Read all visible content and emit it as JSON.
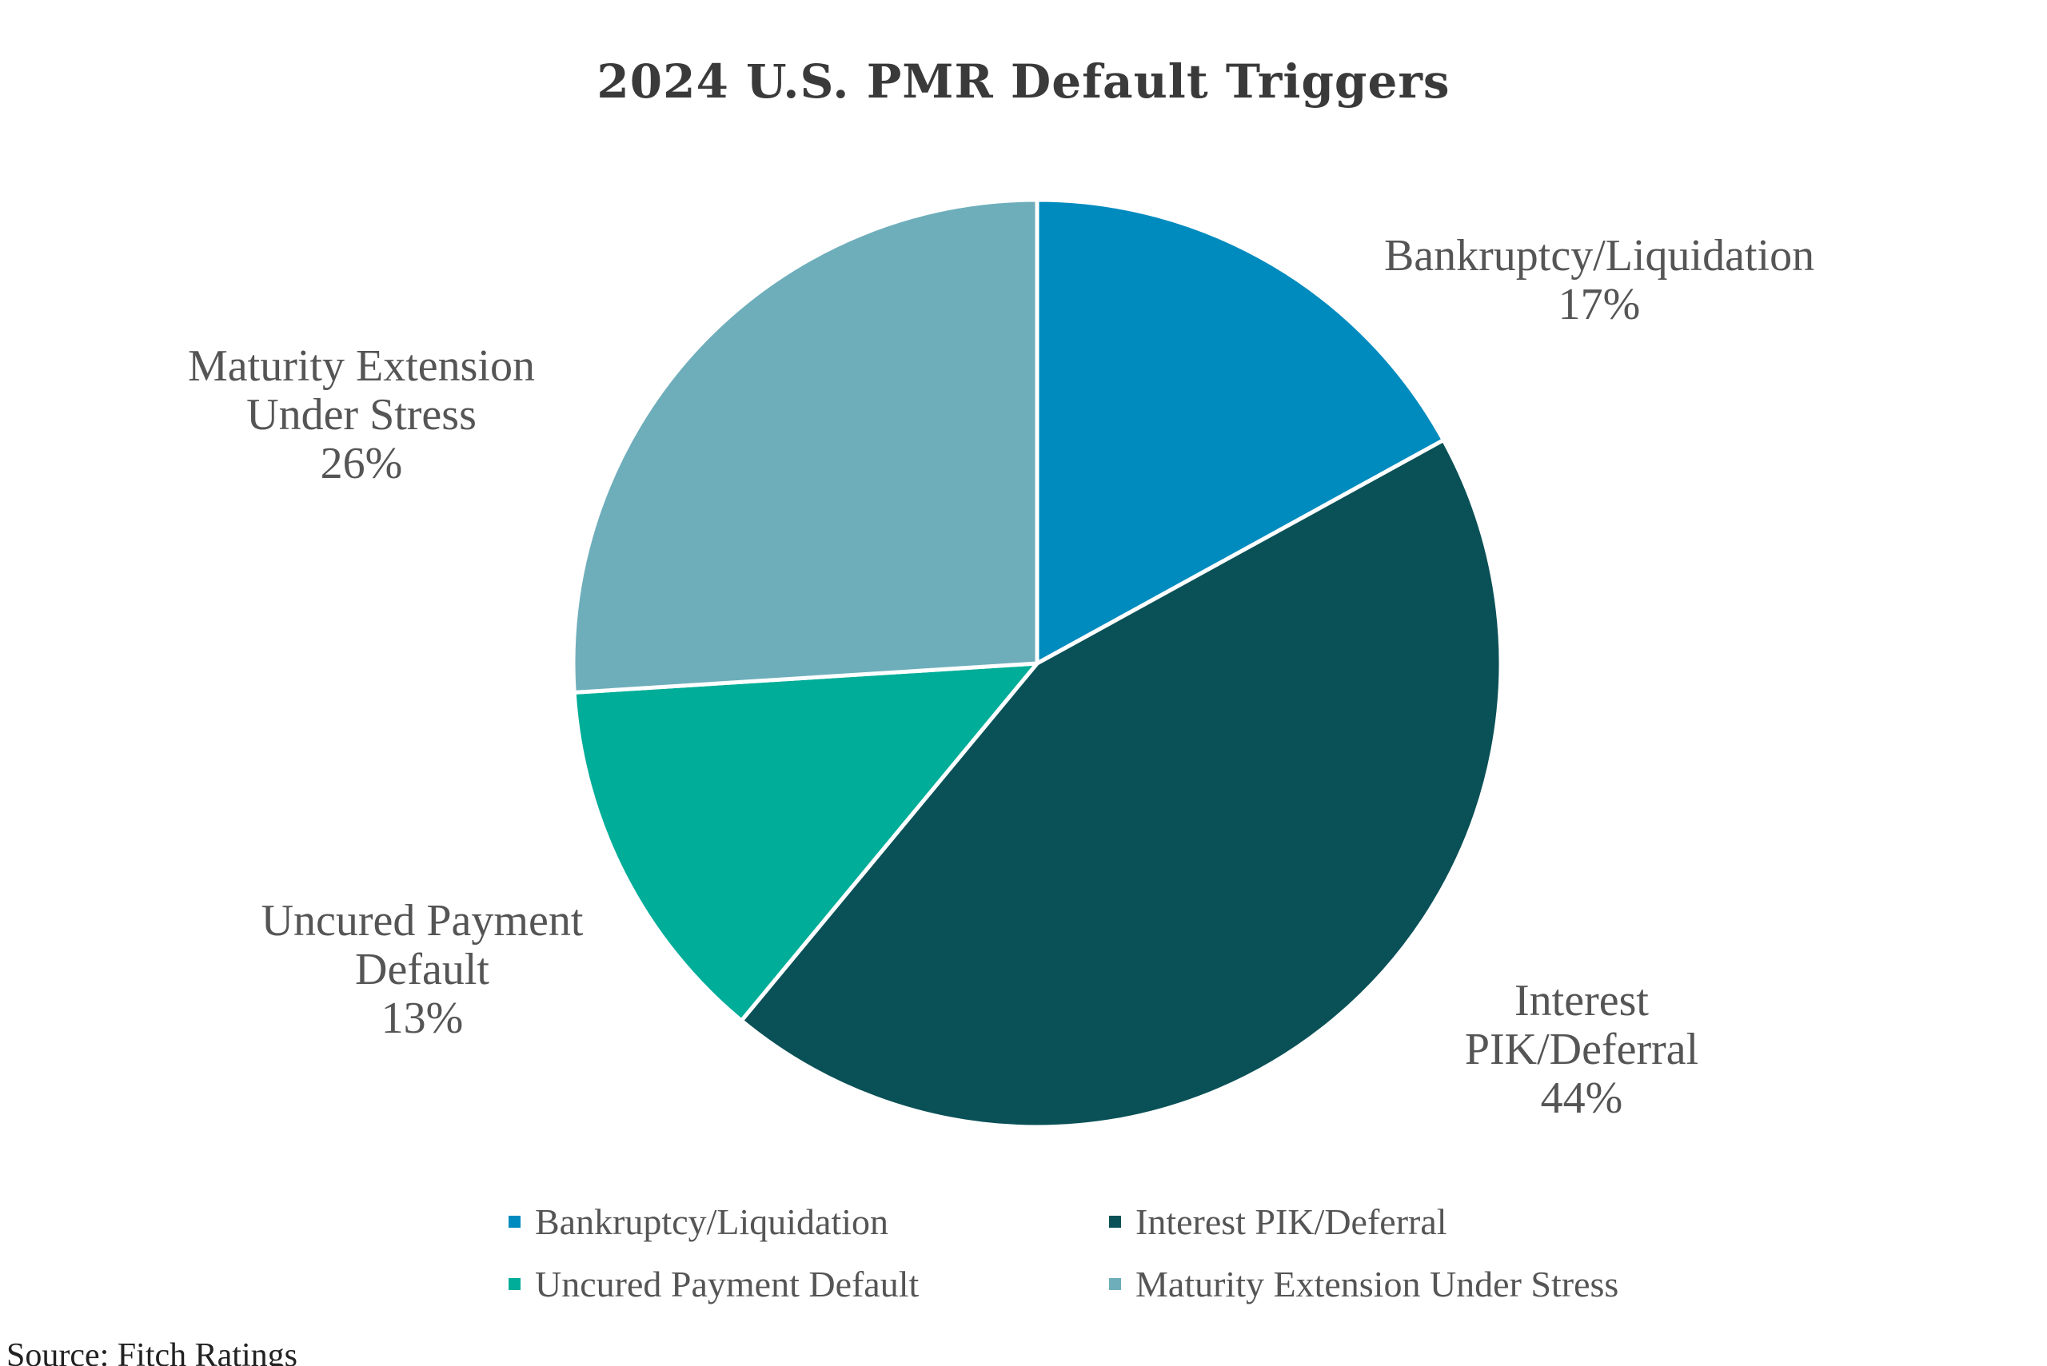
{
  "chart_data": {
    "type": "pie",
    "title": "2024 U.S. PMR Default Triggers",
    "slices": [
      {
        "label": "Bankruptcy/Liquidation",
        "display_label": "Bankruptcy/Liquidation",
        "value": 17,
        "value_label": "17%",
        "color": "#008bbf"
      },
      {
        "label": "Interest PIK/Deferral",
        "display_label": "Interest\nPIK/Deferral",
        "value": 44,
        "value_label": "44%",
        "color": "#0a5157"
      },
      {
        "label": "Uncured Payment Default",
        "display_label": "Uncured Payment\nDefault",
        "value": 13,
        "value_label": "13%",
        "color": "#00ad98"
      },
      {
        "label": "Maturity Extension Under Stress",
        "display_label": "Maturity Extension\nUnder Stress",
        "value": 26,
        "value_label": "26%",
        "color": "#6eaebb"
      }
    ],
    "legend": [
      "Bankruptcy/Liquidation",
      "Interest PIK/Deferral",
      "Uncured Payment Default",
      "Maturity Extension Under Stress"
    ],
    "legend_position": "bottom"
  },
  "source": "Source: Fitch Ratings"
}
